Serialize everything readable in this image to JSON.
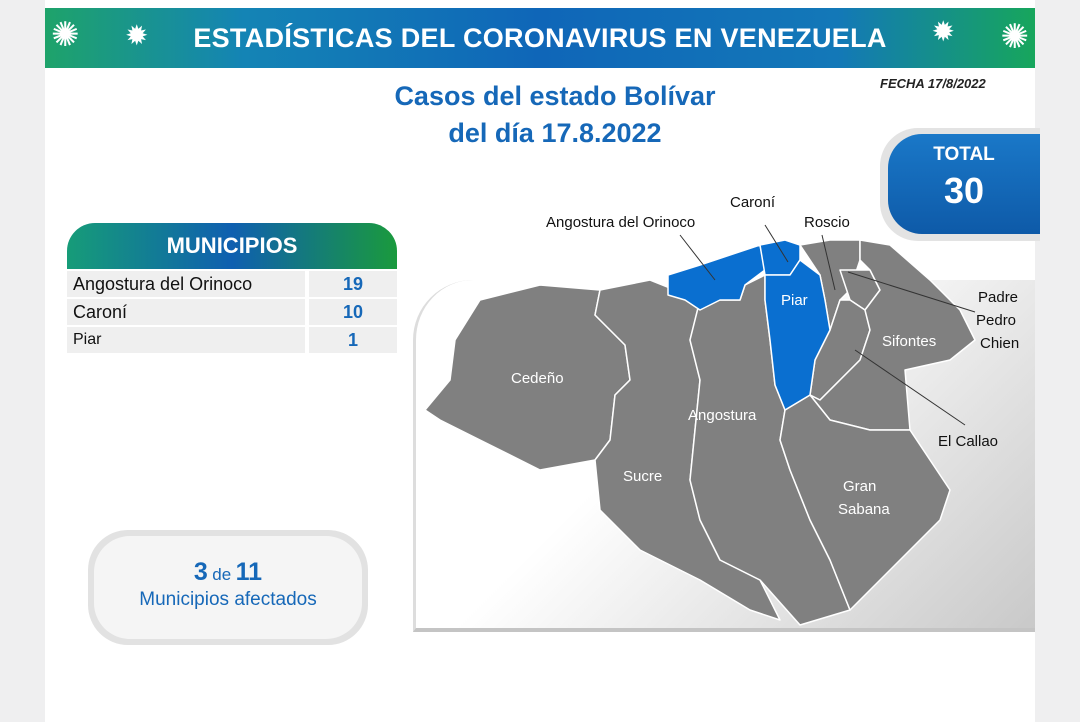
{
  "header": {
    "title": "ESTADÍSTICAS DEL CORONAVIRUS EN VENEZUELA",
    "date": "FECHA 17/8/2022"
  },
  "subtitle": {
    "line1": "Casos del estado Bolívar",
    "line2": "del día 17.8.2022"
  },
  "total": {
    "label": "TOTAL",
    "value": "30"
  },
  "municipios": {
    "header": "MUNICIPIOS",
    "rows": [
      {
        "name": "Angostura del Orinoco",
        "cases": "19"
      },
      {
        "name": "Caroní",
        "cases": "10"
      },
      {
        "name": "Piar",
        "cases": "1"
      }
    ]
  },
  "affected": {
    "count": "3",
    "of": "de",
    "total": "11",
    "label": "Municipios afectados"
  },
  "map": {
    "colors": {
      "affected": "#0a6fd0",
      "unaffected": "#808080"
    },
    "labels": {
      "angostura_orinoco": "Angostura del Orinoco",
      "caroni": "Caroní",
      "roscio": "Roscio",
      "padre": "Padre",
      "pedro": "Pedro",
      "chien": "Chien",
      "piar": "Piar",
      "sifontes": "Sifontes",
      "cedeno": "Cedeño",
      "angostura": "Angostura",
      "el_callao": "El Callao",
      "sucre": "Sucre",
      "gran": "Gran",
      "sabana": "Sabana"
    }
  }
}
